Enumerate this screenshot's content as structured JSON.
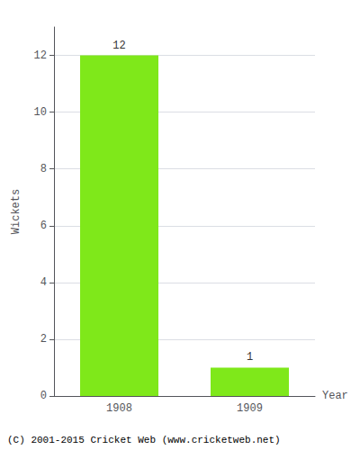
{
  "chart_data": {
    "type": "bar",
    "categories": [
      "1908",
      "1909"
    ],
    "values": [
      12,
      1
    ],
    "color": "#7FE81A",
    "xlabel": "Year",
    "ylabel": "Wickets",
    "ylim": [
      0,
      13
    ],
    "yticks": [
      0,
      2,
      4,
      6,
      8,
      10,
      12
    ],
    "grid": true,
    "data_labels": true,
    "annotations": [
      "(C) 2001-2015 Cricket Web (www.cricketweb.net)"
    ]
  }
}
